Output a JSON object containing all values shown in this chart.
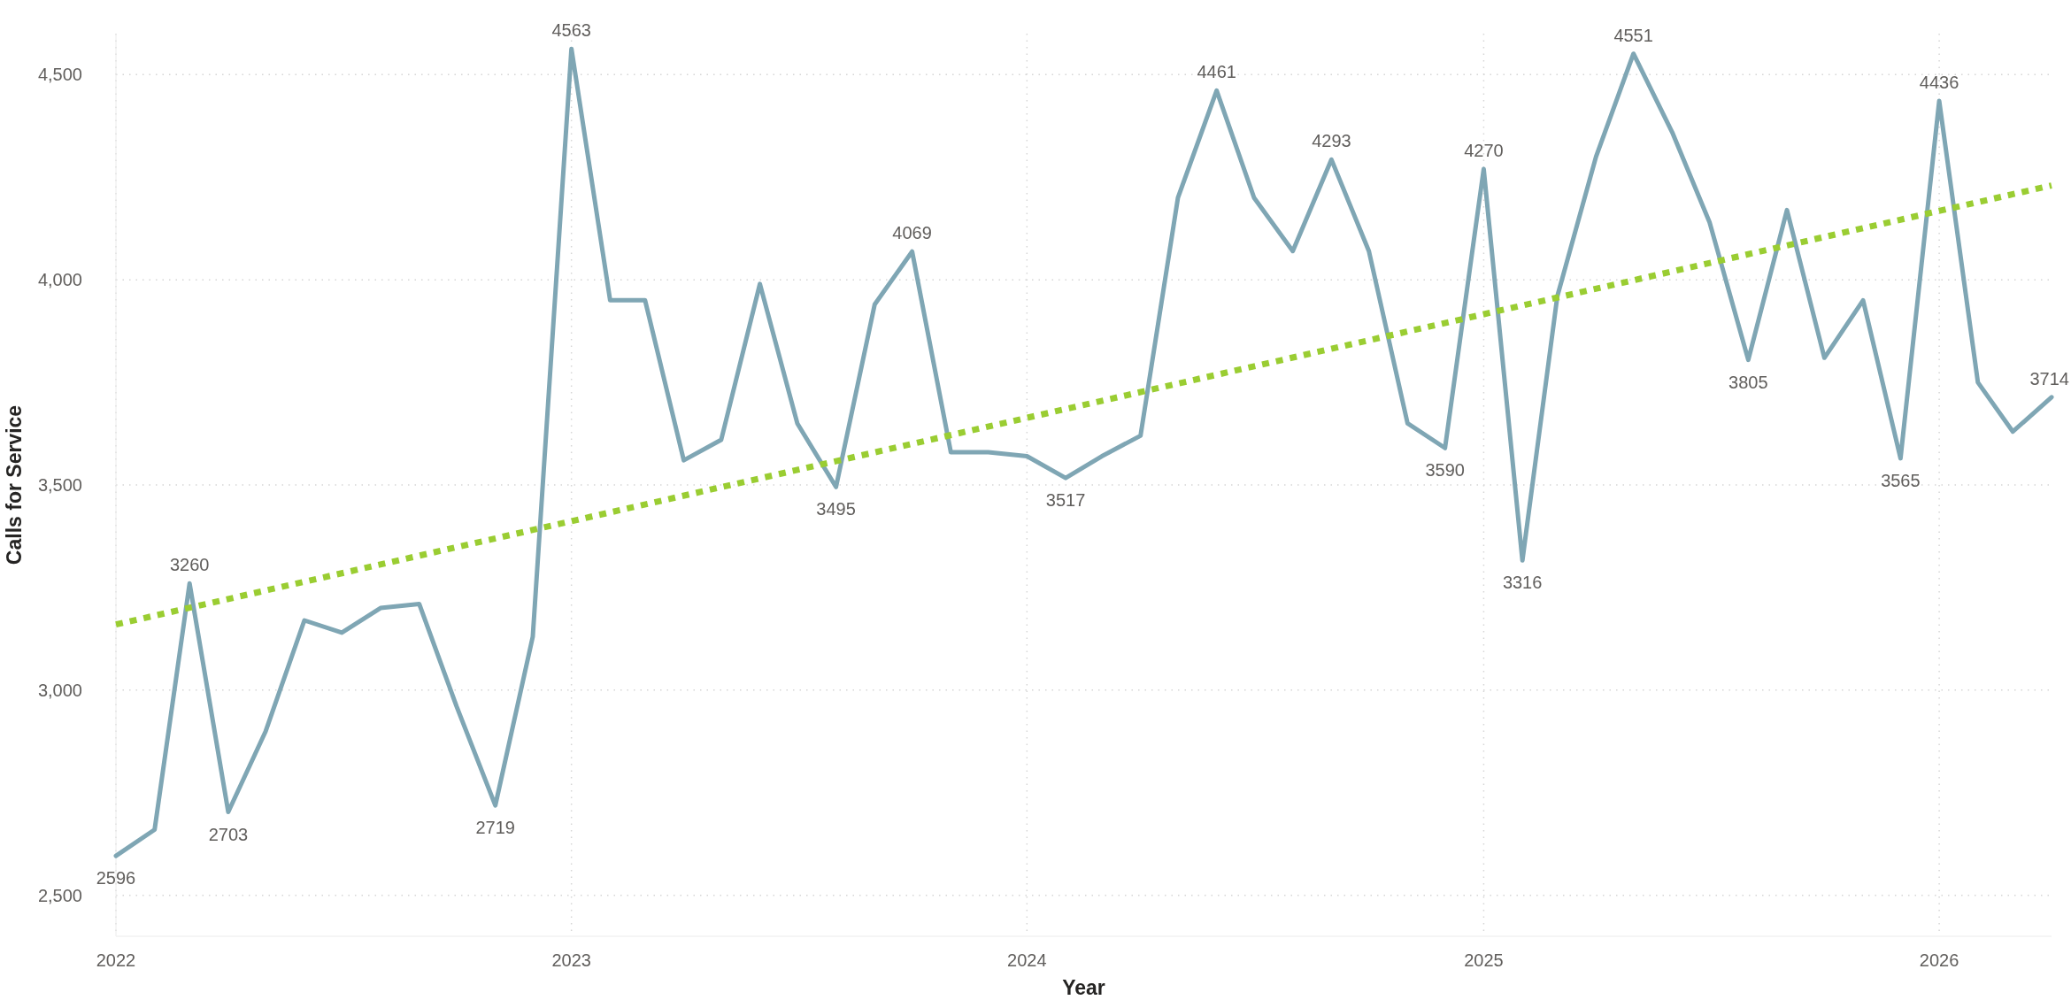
{
  "chart_data": {
    "type": "line",
    "xlabel": "Year",
    "ylabel": "Calls for Service",
    "x": [
      "2022-01",
      "2022-02",
      "2022-03",
      "2022-04",
      "2022-05",
      "2022-06",
      "2022-07",
      "2022-08",
      "2022-09",
      "2022-10",
      "2022-11",
      "2022-12",
      "2023-01",
      "2023-02",
      "2023-03",
      "2023-04",
      "2023-05",
      "2023-06",
      "2023-07",
      "2023-08",
      "2023-09",
      "2023-10",
      "2023-11",
      "2023-12",
      "2024-01",
      "2024-02",
      "2024-03",
      "2024-04",
      "2024-05",
      "2024-06",
      "2024-07",
      "2024-08",
      "2024-09",
      "2024-10",
      "2024-11",
      "2024-12",
      "2025-01",
      "2025-02",
      "2025-03",
      "2025-04",
      "2025-05",
      "2025-06",
      "2025-07",
      "2025-08",
      "2025-09",
      "2025-10",
      "2025-11",
      "2025-12",
      "2026-01",
      "2026-02",
      "2026-03",
      "2026-04"
    ],
    "xlim": [
      "2022-01",
      "2026-04"
    ],
    "xticks": [
      "2022",
      "2023",
      "2024",
      "2025",
      "2026"
    ],
    "ylim": [
      2400,
      4600
    ],
    "yticks": [
      {
        "value": 2500,
        "label": "2,500"
      },
      {
        "value": 3000,
        "label": "3,000"
      },
      {
        "value": 3500,
        "label": "3,500"
      },
      {
        "value": 4000,
        "label": "4,000"
      },
      {
        "value": 4500,
        "label": "4,500"
      }
    ],
    "grid": true,
    "series": [
      {
        "color": "#7fa6b4",
        "line_style": "solid",
        "values": [
          2596,
          2660,
          3260,
          2703,
          2900,
          3170,
          3140,
          3200,
          3210,
          2960,
          2719,
          3130,
          4563,
          3950,
          3950,
          3560,
          3610,
          3990,
          3650,
          3495,
          3940,
          4069,
          3580,
          3580,
          3570,
          3517,
          3570,
          3620,
          4200,
          4461,
          4200,
          4070,
          4293,
          4070,
          3650,
          3590,
          4270,
          3316,
          3960,
          4300,
          4551,
          4360,
          4140,
          3805,
          4170,
          3810,
          3950,
          3565,
          4436,
          3750,
          3630,
          3714
        ],
        "value_labels": [
          "2596",
          null,
          "3260",
          "2703",
          null,
          null,
          null,
          null,
          null,
          null,
          "2719",
          null,
          "4563",
          null,
          null,
          null,
          null,
          null,
          null,
          "3495",
          null,
          "4069",
          null,
          null,
          null,
          "3517",
          null,
          null,
          null,
          "4461",
          null,
          null,
          "4293",
          null,
          null,
          "3590",
          "4270",
          "3316",
          null,
          null,
          "4551",
          null,
          null,
          "3805",
          null,
          null,
          null,
          "3565",
          "4436",
          null,
          null,
          "3714"
        ]
      },
      {
        "type": "line",
        "color": "#9acd32",
        "line_style": "dotted",
        "x": [
          "2022-01",
          "2026-04"
        ],
        "values": [
          3160,
          4230
        ]
      }
    ]
  }
}
